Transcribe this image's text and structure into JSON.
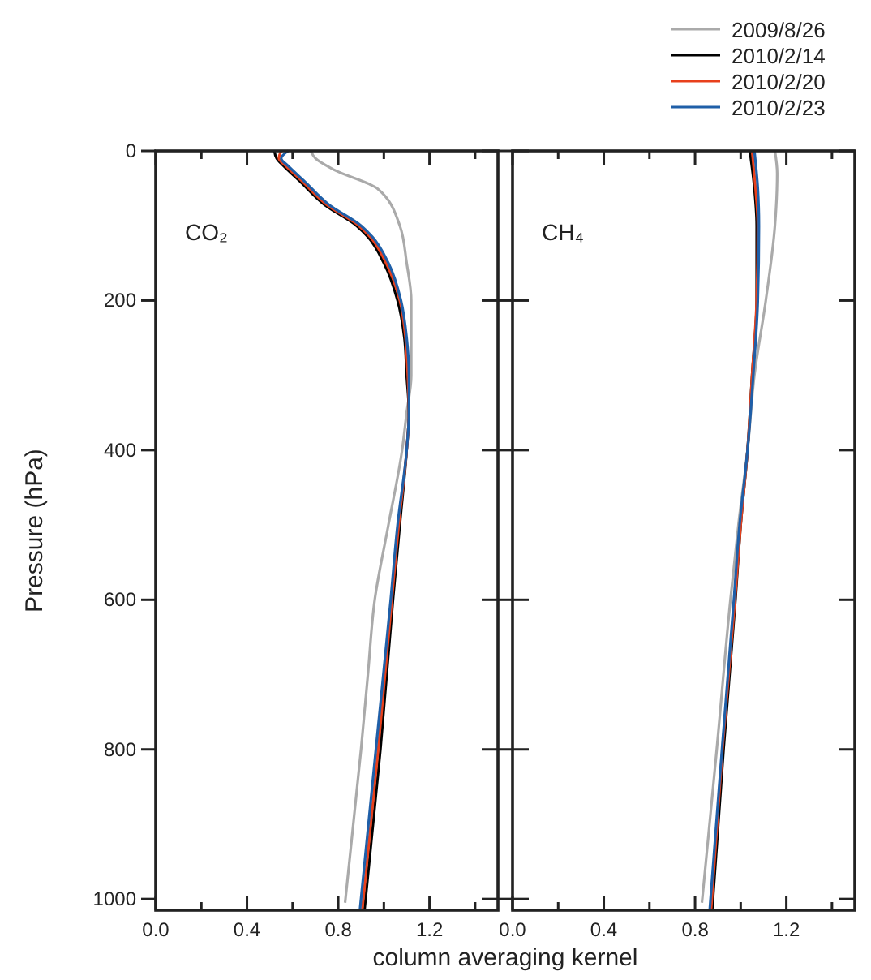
{
  "chart_data": [
    {
      "type": "line",
      "xlabel": "column averaging kernel",
      "ylabel": "Pressure (hPa)",
      "annotations": [
        "CO₂"
      ],
      "xlim": [
        0,
        1.5
      ],
      "ylim": [
        1015,
        0
      ],
      "xticks": [
        {
          "value": 0,
          "label": "0.0"
        },
        {
          "value": 0.2,
          "label": null
        },
        {
          "value": 0.4,
          "label": "0.4"
        },
        {
          "value": 0.6,
          "label": null
        },
        {
          "value": 0.8,
          "label": "0.8"
        },
        {
          "value": 1.0,
          "label": null
        },
        {
          "value": 1.2,
          "label": "1.2"
        },
        {
          "value": 1.4,
          "label": null
        }
      ],
      "yticks": [
        0,
        200,
        400,
        600,
        800,
        1000
      ],
      "legend": false,
      "line_style": "solid",
      "marker": "none",
      "grid": false,
      "series": [
        {
          "color": "#aaaaaa",
          "x": [
            0.68,
            0.7,
            0.78,
            0.97,
            1.07,
            1.1,
            1.12,
            1.12,
            1.1,
            1.08,
            1.02,
            0.96,
            0.93,
            0.9,
            0.83
          ],
          "values": [
            0,
            10,
            25,
            50,
            100,
            150,
            200,
            300,
            350,
            400,
            500,
            600,
            700,
            800,
            1005
          ]
        },
        {
          "color": "#000000",
          "x": [
            0.52,
            0.53,
            0.56,
            0.63,
            0.74,
            0.88,
            0.93,
            1.0,
            1.06,
            1.09,
            1.1,
            1.11,
            1.1,
            1.07,
            1.04,
            0.985,
            0.915
          ],
          "values": [
            0,
            10,
            20,
            40,
            72,
            100,
            115,
            150,
            200,
            250,
            300,
            350,
            400,
            500,
            600,
            800,
            1015
          ]
        },
        {
          "color": "#e8401c",
          "x": [
            0.55,
            0.54,
            0.57,
            0.64,
            0.75,
            0.89,
            0.94,
            1.01,
            1.07,
            1.095,
            1.105,
            1.11,
            1.1,
            1.065,
            1.035,
            0.975,
            0.905
          ],
          "values": [
            0,
            10,
            20,
            40,
            72,
            100,
            115,
            150,
            200,
            250,
            300,
            350,
            400,
            500,
            600,
            800,
            1015
          ]
        },
        {
          "color": "#1f5fa8",
          "x": [
            0.58,
            0.55,
            0.58,
            0.65,
            0.76,
            0.9,
            0.95,
            1.02,
            1.075,
            1.1,
            1.11,
            1.11,
            1.1,
            1.06,
            1.03,
            0.965,
            0.895
          ],
          "values": [
            0,
            10,
            20,
            40,
            72,
            100,
            115,
            150,
            200,
            250,
            300,
            350,
            400,
            500,
            600,
            800,
            1015
          ]
        }
      ]
    },
    {
      "type": "line",
      "annotations": [
        "CH₄"
      ],
      "xlim": [
        0,
        1.5
      ],
      "ylim": [
        1015,
        0
      ],
      "tick_labels": "x",
      "xticks": [
        {
          "value": 0,
          "label": "0.0"
        },
        {
          "value": 0.2,
          "label": null
        },
        {
          "value": 0.4,
          "label": "0.4"
        },
        {
          "value": 0.6,
          "label": null
        },
        {
          "value": 0.8,
          "label": "0.8"
        },
        {
          "value": 1.0,
          "label": null
        },
        {
          "value": 1.2,
          "label": "1.2"
        },
        {
          "value": 1.4,
          "label": null
        }
      ],
      "yticks": [
        0,
        200,
        400,
        600,
        800,
        1000
      ],
      "legend": "top right",
      "line_style": "solid",
      "marker": "none",
      "grid": false,
      "series": [
        {
          "name": "2009/8/26",
          "color": "#aaaaaa",
          "x": [
            1.15,
            1.16,
            1.15,
            1.11,
            1.06,
            1.03,
            0.99,
            0.955,
            0.895,
            0.83
          ],
          "values": [
            0,
            30,
            100,
            200,
            300,
            400,
            500,
            600,
            800,
            1005
          ]
        },
        {
          "name": "2010/2/14",
          "color": "#000000",
          "x": [
            1.04,
            1.06,
            1.07,
            1.07,
            1.05,
            1.03,
            1.0,
            0.977,
            0.925,
            0.875
          ],
          "values": [
            0,
            50,
            100,
            200,
            300,
            400,
            500,
            600,
            800,
            1015
          ]
        },
        {
          "name": "2010/2/20",
          "color": "#e8401c",
          "x": [
            1.05,
            1.065,
            1.075,
            1.07,
            1.05,
            1.03,
            1.0,
            0.975,
            0.92,
            0.87
          ],
          "values": [
            0,
            50,
            100,
            200,
            300,
            400,
            500,
            600,
            800,
            1015
          ]
        },
        {
          "name": "2010/2/23",
          "color": "#1f5fa8",
          "x": [
            1.06,
            1.075,
            1.08,
            1.075,
            1.055,
            1.03,
            0.995,
            0.97,
            0.918,
            0.864
          ],
          "values": [
            0,
            50,
            100,
            200,
            300,
            400,
            500,
            600,
            800,
            1015
          ]
        }
      ]
    }
  ]
}
